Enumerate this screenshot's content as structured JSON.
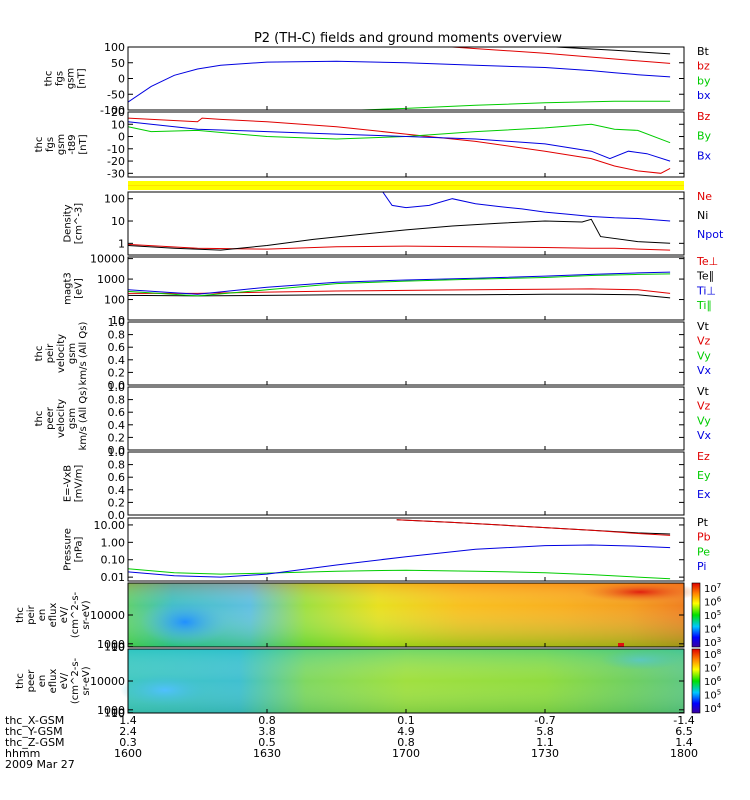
{
  "title": "P2 (TH-C) fields and ground moments overview",
  "colors": {
    "black": "#000000",
    "red": "#e00000",
    "green": "#00cc00",
    "blue": "#0000e0",
    "yellow": "#ffff00"
  },
  "chart_data": [
    {
      "id": "fgs-gsm",
      "type": "line",
      "ylabel_lines": [
        "thc",
        "fgs",
        "gsm",
        "[nT]"
      ],
      "ylim": [
        -100,
        100
      ],
      "yticks": [
        "100",
        "50",
        "0",
        "-50",
        "-100"
      ],
      "legend": [
        {
          "text": "Bt",
          "color": "#000000"
        },
        {
          "text": "bz",
          "color": "#e00000"
        },
        {
          "text": "by",
          "color": "#00cc00"
        },
        {
          "text": "bx",
          "color": "#0000e0"
        }
      ],
      "series": [
        {
          "name": "Bt",
          "color": "#000000",
          "x": [
            75,
            90,
            105,
            117
          ],
          "y": [
            110,
            102,
            90,
            78
          ]
        },
        {
          "name": "bz",
          "color": "#e00000",
          "x": [
            60,
            75,
            90,
            105,
            117
          ],
          "y": [
            110,
            95,
            80,
            62,
            48
          ]
        },
        {
          "name": "by",
          "color": "#00cc00",
          "x": [
            29,
            45,
            60,
            75,
            90,
            105,
            117
          ],
          "y": [
            -110,
            -103,
            -95,
            -85,
            -77,
            -72,
            -72
          ]
        },
        {
          "name": "bx",
          "color": "#0000e0",
          "x": [
            0,
            5,
            10,
            15,
            20,
            30,
            45,
            60,
            75,
            90,
            100,
            105,
            110,
            117
          ],
          "y": [
            -75,
            -25,
            10,
            30,
            42,
            52,
            55,
            50,
            42,
            35,
            25,
            18,
            12,
            5
          ]
        }
      ]
    },
    {
      "id": "fgs-gsm-t89",
      "type": "line",
      "ylabel_lines": [
        "thc",
        "fgs",
        "gsm",
        "-t89",
        "[nT]"
      ],
      "ylim": [
        -33,
        20
      ],
      "yticks": [
        "20",
        "10",
        "0",
        "-10",
        "-20",
        "-30"
      ],
      "legend": [
        {
          "text": "Bz",
          "color": "#e00000"
        },
        {
          "text": "By",
          "color": "#00cc00"
        },
        {
          "text": "Bx",
          "color": "#0000e0"
        }
      ],
      "series": [
        {
          "name": "Bz",
          "color": "#e00000",
          "x": [
            0,
            15,
            16,
            20,
            30,
            45,
            60,
            75,
            90,
            100,
            105,
            110,
            115,
            117
          ],
          "y": [
            15,
            12,
            15,
            14,
            12,
            8,
            2,
            -4,
            -12,
            -18,
            -24,
            -28,
            -30,
            -26
          ]
        },
        {
          "name": "By",
          "color": "#00cc00",
          "x": [
            0,
            5,
            15,
            30,
            45,
            60,
            75,
            90,
            100,
            105,
            110,
            117
          ],
          "y": [
            8,
            4,
            5,
            0,
            -2,
            0,
            4,
            7,
            10,
            6,
            5,
            -5
          ]
        },
        {
          "name": "Bx",
          "color": "#0000e0",
          "x": [
            0,
            5,
            15,
            30,
            45,
            60,
            75,
            90,
            100,
            104,
            108,
            112,
            117
          ],
          "y": [
            12,
            10,
            6,
            4,
            2,
            0,
            -2,
            -6,
            -12,
            -18,
            -12,
            -14,
            -20
          ]
        }
      ]
    },
    {
      "id": "density",
      "type": "line",
      "log": true,
      "ylabel_lines": [
        "Density",
        "[cm^-3]"
      ],
      "ylim": [
        0.3,
        200
      ],
      "yticks": [
        "100",
        "10",
        "1"
      ],
      "legend": [
        {
          "text": "Ne",
          "color": "#e00000"
        },
        {
          "text": "Ni",
          "color": "#000000"
        },
        {
          "text": "Npot",
          "color": "#0000e0"
        }
      ],
      "series": [
        {
          "name": "Ne",
          "color": "#e00000",
          "x": [
            0,
            15,
            30,
            45,
            60,
            75,
            90,
            100,
            105,
            110,
            117
          ],
          "y": [
            0.9,
            0.6,
            0.55,
            0.7,
            0.75,
            0.7,
            0.65,
            0.6,
            0.6,
            0.55,
            0.5
          ]
        },
        {
          "name": "Ni",
          "color": "#000000",
          "x": [
            0,
            10,
            20,
            30,
            40,
            50,
            60,
            70,
            80,
            90,
            98,
            100,
            102,
            110,
            117
          ],
          "y": [
            0.8,
            0.6,
            0.5,
            0.8,
            1.5,
            2.5,
            4,
            6,
            8,
            10,
            9,
            12,
            2,
            1.2,
            1
          ]
        },
        {
          "name": "Npot",
          "color": "#0000e0",
          "x": [
            55,
            57,
            60,
            65,
            70,
            75,
            80,
            85,
            90,
            95,
            100,
            105,
            110,
            117
          ],
          "y": [
            200,
            50,
            40,
            50,
            100,
            60,
            45,
            35,
            25,
            20,
            16,
            14,
            13,
            10
          ]
        }
      ]
    },
    {
      "id": "magt3",
      "type": "line",
      "log": true,
      "ylabel_lines": [
        "magt3",
        "[eV]"
      ],
      "ylim": [
        10,
        12000
      ],
      "yticks": [
        "10000",
        "1000",
        "100",
        "10"
      ],
      "legend": [
        {
          "text": "Te⊥",
          "color": "#e00000"
        },
        {
          "text": "Te∥",
          "color": "#000000"
        },
        {
          "text": "Ti⊥",
          "color": "#0000e0"
        },
        {
          "text": "Ti∥",
          "color": "#00cc00"
        }
      ],
      "series": [
        {
          "name": "Te⊥",
          "color": "#e00000",
          "x": [
            0,
            15,
            30,
            45,
            60,
            75,
            90,
            100,
            110,
            117
          ],
          "y": [
            200,
            200,
            230,
            260,
            280,
            300,
            320,
            330,
            300,
            200
          ]
        },
        {
          "name": "Te∥",
          "color": "#000000",
          "x": [
            0,
            15,
            30,
            45,
            60,
            75,
            90,
            100,
            110,
            117
          ],
          "y": [
            160,
            150,
            160,
            170,
            170,
            170,
            180,
            180,
            170,
            120
          ]
        },
        {
          "name": "Ti⊥",
          "color": "#0000e0",
          "x": [
            0,
            15,
            30,
            45,
            60,
            75,
            90,
            100,
            110,
            117
          ],
          "y": [
            300,
            180,
            400,
            700,
            900,
            1100,
            1400,
            1700,
            2000,
            2200
          ]
        },
        {
          "name": "Ti∥",
          "color": "#00cc00",
          "x": [
            0,
            15,
            30,
            45,
            60,
            75,
            90,
            100,
            110,
            117
          ],
          "y": [
            250,
            150,
            300,
            600,
            800,
            1000,
            1200,
            1500,
            1700,
            1800
          ]
        }
      ]
    },
    {
      "id": "peir-velocity",
      "type": "line",
      "ylabel_lines": [
        "thc",
        "peir",
        "velocity",
        "gsm",
        "km/s (All Qs)"
      ],
      "ylim": [
        0,
        1
      ],
      "yticks": [
        "1.0",
        "0.8",
        "0.6",
        "0.4",
        "0.2",
        "0.0"
      ],
      "legend": [
        {
          "text": "Vt",
          "color": "#000000"
        },
        {
          "text": "Vz",
          "color": "#e00000"
        },
        {
          "text": "Vy",
          "color": "#00cc00"
        },
        {
          "text": "Vx",
          "color": "#0000e0"
        }
      ],
      "series": []
    },
    {
      "id": "peer-velocity",
      "type": "line",
      "ylabel_lines": [
        "thc",
        "peer",
        "velocity",
        "gsm",
        "km/s (All Qs)"
      ],
      "ylim": [
        0,
        1
      ],
      "yticks": [
        "1.0",
        "0.8",
        "0.6",
        "0.4",
        "0.2",
        "0.0"
      ],
      "legend": [
        {
          "text": "Vt",
          "color": "#000000"
        },
        {
          "text": "Vz",
          "color": "#e00000"
        },
        {
          "text": "Vy",
          "color": "#00cc00"
        },
        {
          "text": "Vx",
          "color": "#0000e0"
        }
      ],
      "series": []
    },
    {
      "id": "e-field",
      "type": "line",
      "ylabel_lines": [
        "E=-VxB",
        "[mV/m]"
      ],
      "ylim": [
        0,
        1
      ],
      "yticks": [
        "1.0",
        "0.8",
        "0.6",
        "0.4",
        "0.2",
        "0.0"
      ],
      "legend": [
        {
          "text": "Ez",
          "color": "#e00000"
        },
        {
          "text": "Ey",
          "color": "#00cc00"
        },
        {
          "text": "Ex",
          "color": "#0000e0"
        }
      ],
      "series": []
    },
    {
      "id": "pressure",
      "type": "line",
      "log": true,
      "ylabel_lines": [
        "Pressure",
        "[nPa]"
      ],
      "ylim": [
        0.006,
        25
      ],
      "yticks": [
        "10.00",
        "1.00",
        "0.10",
        "0.01"
      ],
      "legend": [
        {
          "text": "Pt",
          "color": "#000000"
        },
        {
          "text": "Pb",
          "color": "#e00000"
        },
        {
          "text": "Pe",
          "color": "#00cc00"
        },
        {
          "text": "Pi",
          "color": "#0000e0"
        }
      ],
      "series": [
        {
          "name": "Pt",
          "color": "#000000",
          "x": [
            58,
            70,
            80,
            90,
            100,
            110,
            117
          ],
          "y": [
            20,
            14,
            10,
            7,
            5,
            3.5,
            3
          ]
        },
        {
          "name": "Pb",
          "color": "#e00000",
          "x": [
            58,
            70,
            80,
            90,
            100,
            110,
            117
          ],
          "y": [
            20,
            14,
            10,
            7,
            5,
            3.2,
            2.5
          ]
        },
        {
          "name": "Pe",
          "color": "#00cc00",
          "x": [
            0,
            10,
            20,
            30,
            45,
            60,
            75,
            90,
            100,
            110,
            117
          ],
          "y": [
            0.03,
            0.018,
            0.015,
            0.017,
            0.022,
            0.025,
            0.022,
            0.018,
            0.014,
            0.01,
            0.008
          ]
        },
        {
          "name": "Pi",
          "color": "#0000e0",
          "x": [
            0,
            10,
            20,
            30,
            45,
            60,
            75,
            90,
            100,
            110,
            117
          ],
          "y": [
            0.02,
            0.012,
            0.01,
            0.015,
            0.05,
            0.15,
            0.4,
            0.65,
            0.7,
            0.6,
            0.5
          ]
        }
      ]
    },
    {
      "id": "peir-en-eflux",
      "type": "heatmap",
      "ylabel_lines": [
        "thc",
        "peir",
        "en",
        "eflux",
        "eV/",
        "(cm^2-s-",
        "sr-eV)"
      ],
      "ylim": [
        5,
        20000
      ],
      "yticks": [
        "10000",
        "1000",
        "100",
        "10"
      ],
      "colorbar_ticks": [
        "10^7",
        "10^6",
        "10^5",
        "10^4",
        "10^3"
      ]
    },
    {
      "id": "peer-en-eflux",
      "type": "heatmap",
      "ylabel_lines": [
        "thc",
        "peer",
        "en",
        "eflux",
        "eV/",
        "(cm^2-s-",
        "sr-eV)"
      ],
      "ylim": [
        5,
        20000
      ],
      "yticks": [
        "10000",
        "1000",
        "100",
        "10"
      ],
      "colorbar_ticks": [
        "10^8",
        "10^7",
        "10^6",
        "10^5",
        "10^4"
      ]
    }
  ],
  "x_axis": {
    "row_labels": [
      "thc_X-GSM",
      "thc_Y-GSM",
      "thc_Z-GSM",
      "hhmm",
      "2009 Mar 27"
    ],
    "ticks": [
      {
        "x": 0,
        "values": [
          "1.4",
          "2.4",
          "0.3",
          "1600"
        ]
      },
      {
        "x": 30,
        "values": [
          "0.8",
          "3.8",
          "0.5",
          "1630"
        ]
      },
      {
        "x": 60,
        "values": [
          "0.1",
          "4.9",
          "0.8",
          "1700"
        ]
      },
      {
        "x": 90,
        "values": [
          "-0.7",
          "5.8",
          "1.1",
          "1730"
        ]
      },
      {
        "x": 120,
        "values": [
          "-1.4",
          "6.5",
          "1.4",
          "1800"
        ]
      }
    ]
  }
}
